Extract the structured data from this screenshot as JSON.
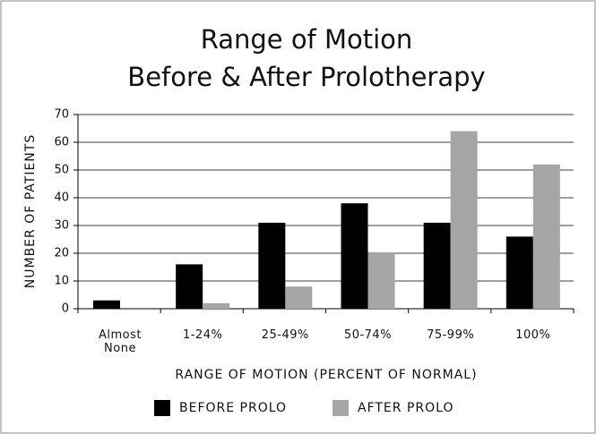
{
  "chart_data": {
    "type": "bar",
    "title": "Range of Motion",
    "subtitle": "Before & After Prolotherapy",
    "x_label": "RANGE OF MOTION (PERCENT OF NORMAL)",
    "y_label": "NUMBER OF PATIENTS",
    "categories": [
      "Almost None",
      "1-24%",
      "25-49%",
      "50-74%",
      "75-99%",
      "100%"
    ],
    "series": [
      {
        "name": "BEFORE PROLO",
        "color": "#000000",
        "values": [
          3,
          16,
          31,
          38,
          31,
          26
        ]
      },
      {
        "name": "AFTER PROLO",
        "color": "#a6a6a6",
        "values": [
          0,
          2,
          8,
          20,
          64,
          52
        ]
      }
    ],
    "ylim": [
      0,
      70
    ],
    "yticks": [
      0,
      10,
      20,
      30,
      40,
      50,
      60,
      70
    ],
    "grid": true
  }
}
